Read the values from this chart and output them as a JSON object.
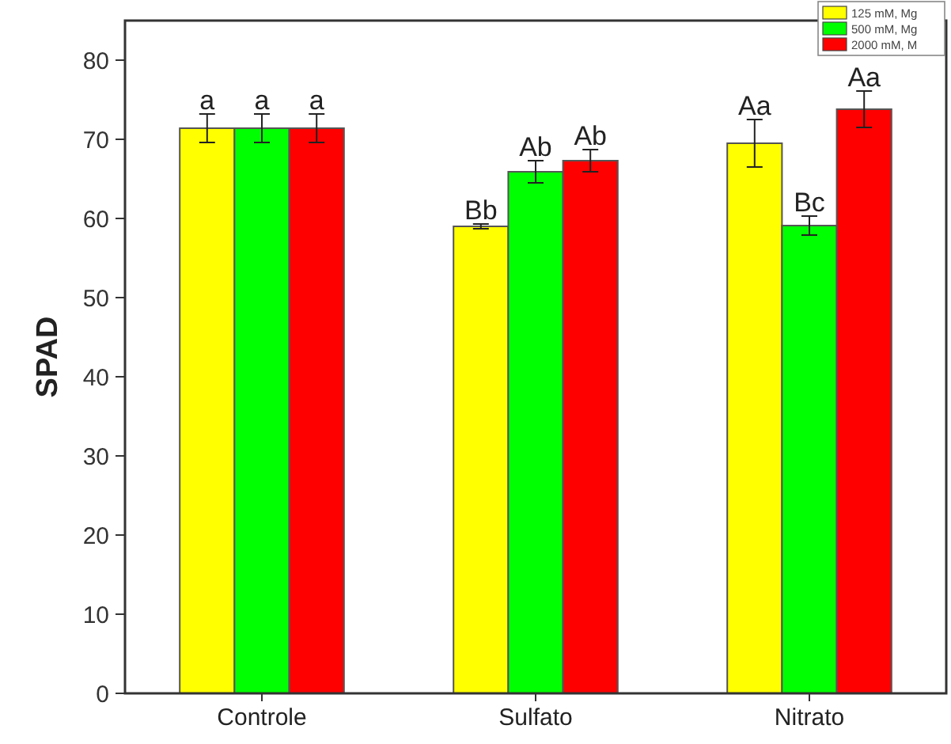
{
  "chart_data": {
    "type": "bar",
    "ylabel": "SPAD",
    "categories": [
      "Controle",
      "Sulfato",
      "Nitrato"
    ],
    "series": [
      {
        "name": "125 mM, Mg",
        "color": "#ffff00",
        "values": [
          71.4,
          59.0,
          69.5
        ],
        "errors": [
          1.8,
          0.3,
          3
        ],
        "value_labels": [
          "a",
          "Bb",
          "Aa"
        ]
      },
      {
        "name": "500 mM, Mg",
        "color": "#00ff00",
        "values": [
          71.4,
          65.9,
          59.1
        ],
        "errors": [
          1.8,
          1.4,
          1.2
        ],
        "value_labels": [
          "a",
          "Ab",
          "Bc"
        ]
      },
      {
        "name": "2000 mM, M",
        "color": "#ff0000",
        "values": [
          71.4,
          67.3,
          73.8
        ],
        "errors": [
          1.8,
          1.4,
          2.3
        ],
        "value_labels": [
          "a",
          "Ab",
          "Aa"
        ]
      }
    ],
    "ylim": [
      0,
      85
    ],
    "yticks": [
      0,
      10,
      20,
      30,
      40,
      50,
      60,
      70,
      80
    ],
    "grid": false,
    "legend": "top right"
  }
}
